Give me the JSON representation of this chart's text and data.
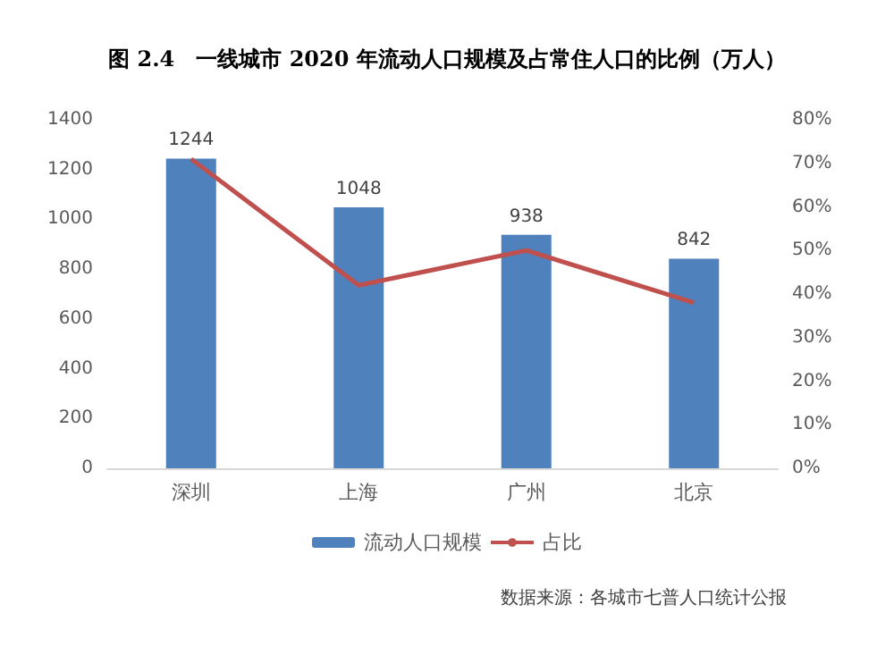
{
  "chart_data": {
    "type": "bar",
    "title": "图 2.4　一线城市 2020 年流动人口规模及占常住人口的比例（万人）",
    "categories": [
      "深圳",
      "上海",
      "广州",
      "北京"
    ],
    "series": [
      {
        "name": "流动人口规模",
        "color": "#4f81bd",
        "values": [
          1244,
          1048,
          938,
          842
        ],
        "data_labels": true
      },
      {
        "name": "占比",
        "type": "line",
        "axis": "y2",
        "color": "#c0504d",
        "values": [
          71,
          42,
          50,
          38
        ]
      }
    ],
    "ylim": [
      0,
      1400
    ],
    "yticks": [
      0,
      200,
      400,
      600,
      800,
      1000,
      1200,
      1400
    ],
    "y2lim": [
      0,
      80
    ],
    "y2ticks": [
      {
        "value": 0,
        "label": "0%"
      },
      {
        "value": 10,
        "label": "10%"
      },
      {
        "value": 20,
        "label": "20%"
      },
      {
        "value": 30,
        "label": "30%"
      },
      {
        "value": 40,
        "label": "40%"
      },
      {
        "value": 50,
        "label": "50%"
      },
      {
        "value": 60,
        "label": "60%"
      },
      {
        "value": 70,
        "label": "70%"
      },
      {
        "value": 80,
        "label": "80%"
      }
    ],
    "grid": false,
    "legend": "bottom",
    "marker": "none",
    "annotations": [
      "数据来源：各城市七普人口统计公报"
    ]
  }
}
